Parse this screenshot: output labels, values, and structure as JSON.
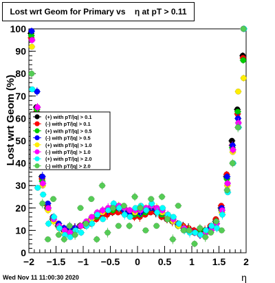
{
  "title": "Lost wrt Geom for Primary vs    η at pT > 0.11",
  "footer": "Wed Nov 11 11:00:30 2020",
  "chart_data": {
    "type": "scatter",
    "ylabel": "Lost wrt Geom (%)",
    "xlabel": "η",
    "xlim": [
      -2.0,
      2.0
    ],
    "ylim": [
      0,
      100
    ],
    "x_ticks": [
      "−2",
      "−1.5",
      "−1",
      "−0.5",
      "0",
      "0.5",
      "1",
      "1.5",
      "2"
    ],
    "y_ticks": [
      "0",
      "10",
      "20",
      "30",
      "40",
      "50",
      "60",
      "70",
      "80",
      "90",
      "100"
    ],
    "legend_placement": "upper-left",
    "series": [
      {
        "name": "(+) with pT/|q| > 0.1",
        "color": "#000000",
        "x": [
          -1.95,
          -1.85,
          -1.75,
          -1.65,
          -1.55,
          -1.45,
          -1.35,
          -1.25,
          -1.15,
          -1.05,
          -0.95,
          -0.85,
          -0.75,
          -0.65,
          -0.55,
          -0.45,
          -0.35,
          -0.25,
          -0.15,
          -0.05,
          0.05,
          0.15,
          0.25,
          0.35,
          0.45,
          0.55,
          0.65,
          0.75,
          0.85,
          0.95,
          1.05,
          1.15,
          1.25,
          1.35,
          1.45,
          1.55,
          1.65,
          1.75,
          1.85,
          1.95
        ],
        "y": [
          98,
          65,
          34,
          20,
          15,
          12,
          10,
          10,
          11,
          12,
          13,
          14,
          16,
          17,
          18,
          18,
          19,
          18,
          17,
          17,
          17,
          18,
          19,
          18,
          17,
          15,
          14,
          13,
          12,
          11,
          10,
          9,
          10,
          11,
          14,
          20,
          34,
          50,
          64,
          88
        ]
      },
      {
        "name": "(-) with pT/|q| > 0.1",
        "color": "#ff0000",
        "x": [
          -1.95,
          -1.85,
          -1.75,
          -1.65,
          -1.55,
          -1.45,
          -1.35,
          -1.25,
          -1.15,
          -1.05,
          -0.95,
          -0.85,
          -0.75,
          -0.65,
          -0.55,
          -0.45,
          -0.35,
          -0.25,
          -0.15,
          -0.05,
          0.05,
          0.15,
          0.25,
          0.35,
          0.45,
          0.55,
          0.65,
          0.75,
          0.85,
          0.95,
          1.05,
          1.15,
          1.25,
          1.35,
          1.45,
          1.55,
          1.65,
          1.75,
          1.85,
          1.95
        ],
        "y": [
          96,
          63,
          33,
          21,
          16,
          13,
          11,
          10,
          11,
          12,
          12,
          13,
          15,
          16,
          17,
          18,
          18,
          18,
          17,
          16,
          16,
          17,
          18,
          18,
          16,
          15,
          14,
          13,
          12,
          11,
          10,
          10,
          10,
          12,
          15,
          21,
          35,
          48,
          62,
          87
        ]
      },
      {
        "name": "(+) with pT/|q| > 0.5",
        "color": "#00cc00",
        "x": [
          -1.95,
          -1.85,
          -1.75,
          -1.65,
          -1.55,
          -1.45,
          -1.35,
          -1.25,
          -1.15,
          -1.05,
          -0.95,
          -0.85,
          -0.75,
          -0.65,
          -0.55,
          -0.45,
          -0.35,
          -0.25,
          -0.15,
          -0.05,
          0.05,
          0.15,
          0.25,
          0.35,
          0.45,
          0.55,
          0.65,
          0.75,
          0.85,
          0.95,
          1.05,
          1.15,
          1.25,
          1.35,
          1.45,
          1.55,
          1.65,
          1.75,
          1.85,
          1.95
        ],
        "y": [
          97,
          64,
          32,
          20,
          15,
          12,
          10,
          9,
          11,
          12,
          13,
          15,
          16,
          18,
          19,
          19,
          20,
          19,
          18,
          17,
          17,
          18,
          20,
          19,
          17,
          16,
          14,
          12,
          11,
          10,
          9,
          9,
          10,
          11,
          14,
          19,
          33,
          47,
          63,
          86
        ]
      },
      {
        "name": "(-) with pT/|q| > 0.5",
        "color": "#0000ff",
        "x": [
          -1.95,
          -1.85,
          -1.75,
          -1.65,
          -1.55,
          -1.45,
          -1.35,
          -1.25,
          -1.15,
          -1.05,
          -0.95,
          -0.85,
          -0.75,
          -0.65,
          -0.55,
          -0.45,
          -0.35,
          -0.25,
          -0.15,
          -0.05,
          0.05,
          0.15,
          0.25,
          0.35,
          0.45,
          0.55,
          0.65,
          0.75,
          0.85,
          0.95,
          1.05,
          1.15,
          1.25,
          1.35,
          1.45,
          1.55,
          1.65,
          1.75,
          1.85,
          1.95
        ],
        "y": [
          99,
          72,
          34,
          22,
          16,
          13,
          11,
          10,
          11,
          12,
          13,
          15,
          17,
          18,
          19,
          20,
          20,
          19,
          18,
          18,
          18,
          19,
          20,
          19,
          18,
          16,
          15,
          13,
          11,
          10,
          9,
          8,
          9,
          11,
          14,
          20,
          34,
          48,
          60,
          100
        ]
      },
      {
        "name": "(+) with pT/|q| > 1.0",
        "color": "#ffee00",
        "x": [
          -1.95,
          -1.85,
          -1.75,
          -1.65,
          -1.55,
          -1.45,
          -1.35,
          -1.25,
          -1.15,
          -1.05,
          -0.95,
          -0.85,
          -0.75,
          -0.65,
          -0.55,
          -0.45,
          -0.35,
          -0.25,
          -0.15,
          -0.05,
          0.05,
          0.15,
          0.25,
          0.35,
          0.45,
          0.55,
          0.65,
          0.75,
          0.85,
          0.95,
          1.05,
          1.15,
          1.25,
          1.35,
          1.45,
          1.55,
          1.65,
          1.75,
          1.85,
          1.95
        ],
        "y": [
          92,
          60,
          30,
          19,
          14,
          11,
          9,
          9,
          10,
          12,
          13,
          15,
          17,
          18,
          19,
          20,
          21,
          20,
          19,
          18,
          19,
          20,
          21,
          20,
          18,
          16,
          14,
          12,
          11,
          10,
          9,
          8,
          9,
          10,
          13,
          18,
          30,
          45,
          72,
          78
        ]
      },
      {
        "name": "(-) with pT/|q| > 1.0",
        "color": "#ff00ff",
        "x": [
          -1.95,
          -1.85,
          -1.75,
          -1.65,
          -1.55,
          -1.45,
          -1.35,
          -1.25,
          -1.15,
          -1.05,
          -0.95,
          -0.85,
          -0.75,
          -0.65,
          -0.55,
          -0.45,
          -0.35,
          -0.25,
          -0.15,
          -0.05,
          0.05,
          0.15,
          0.25,
          0.35,
          0.45,
          0.55,
          0.65,
          0.75,
          0.85,
          0.95,
          1.05,
          1.15,
          1.25,
          1.35,
          1.45,
          1.55,
          1.65,
          1.75,
          1.85,
          1.95
        ],
        "y": [
          95,
          65,
          31,
          20,
          15,
          12,
          10,
          9,
          10,
          12,
          14,
          16,
          18,
          19,
          20,
          21,
          21,
          20,
          19,
          19,
          19,
          20,
          21,
          20,
          19,
          17,
          15,
          13,
          11,
          10,
          9,
          8,
          9,
          10,
          13,
          19,
          31,
          46,
          58,
          100
        ]
      },
      {
        "name": "(+) with pT/|q| > 2.0",
        "color": "#00ffff",
        "x": [
          -1.95,
          -1.85,
          -1.75,
          -1.65,
          -1.55,
          -1.45,
          -1.35,
          -1.25,
          -1.15,
          -1.05,
          -0.95,
          -0.85,
          -0.75,
          -0.65,
          -0.55,
          -0.45,
          -0.35,
          -0.25,
          -0.15,
          -0.05,
          0.05,
          0.15,
          0.25,
          0.35,
          0.45,
          0.55,
          0.65,
          0.75,
          0.85,
          0.95,
          1.05,
          1.15,
          1.25,
          1.35,
          1.45,
          1.55,
          1.65,
          1.75,
          1.85,
          1.95
        ],
        "y": [
          73,
          29,
          26,
          13,
          16,
          11,
          8,
          7,
          10,
          9,
          12,
          13,
          17,
          15,
          19,
          22,
          20,
          17,
          16,
          20,
          21,
          19,
          22,
          18,
          20,
          17,
          16,
          13,
          10,
          9,
          9,
          8,
          10,
          12,
          11,
          17,
          27,
          40,
          56,
          100
        ]
      },
      {
        "name": "(-) with pT/|q| > 2.0",
        "color": "#55cc55",
        "x": [
          -1.95,
          -1.85,
          -1.75,
          -1.65,
          -1.55,
          -1.45,
          -1.35,
          -1.25,
          -1.15,
          -1.05,
          -0.95,
          -0.85,
          -0.75,
          -0.65,
          -0.55,
          -0.45,
          -0.35,
          -0.25,
          -0.15,
          -0.05,
          0.05,
          0.15,
          0.25,
          0.35,
          0.45,
          0.55,
          0.65,
          0.75,
          0.85,
          0.95,
          1.05,
          1.15,
          1.25,
          1.35,
          1.45,
          1.55,
          1.65,
          1.75,
          1.85,
          1.95
        ],
        "y": [
          80,
          50,
          22,
          6,
          24,
          8,
          6,
          12,
          8,
          20,
          13,
          24,
          6,
          30,
          9,
          20,
          12,
          21,
          12,
          25,
          20,
          10,
          24,
          12,
          25,
          15,
          6,
          21,
          10,
          10,
          4,
          11,
          7,
          9,
          14,
          10,
          28,
          40,
          56,
          100
        ]
      }
    ]
  }
}
